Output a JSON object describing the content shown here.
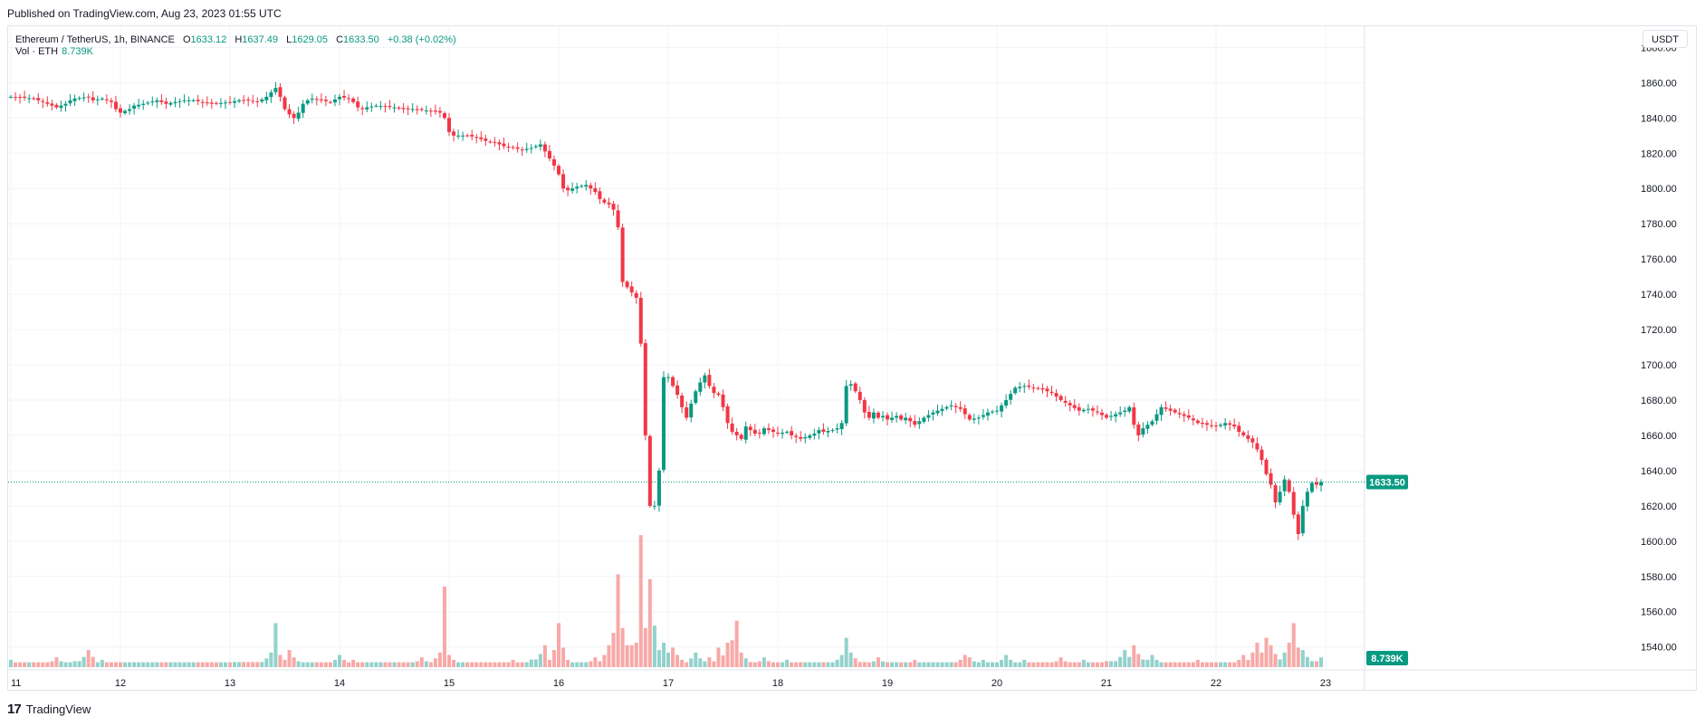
{
  "header": {
    "published": "Published on TradingView.com, Aug 23, 2023 01:55 UTC"
  },
  "legend": {
    "symbol": "Ethereum / TetherUS, 1h, BINANCE",
    "open_label": "O",
    "open": "1633.12",
    "high_label": "H",
    "high": "1637.49",
    "low_label": "L",
    "low": "1629.05",
    "close_label": "C",
    "close": "1633.50",
    "change": "+0.38 (+0.02%)",
    "volume_label": "Vol · ETH",
    "volume": "8.739K"
  },
  "currency": "USDT",
  "footer": {
    "brand": "TradingView",
    "logo": "17"
  },
  "colors": {
    "up": "#089981",
    "down": "#f23645",
    "up_vol": "#92d2cc",
    "down_vol": "#f7a9a7",
    "grid": "#f0f3fa"
  },
  "chart_data": {
    "type": "candlestick",
    "symbol": "ETHUSDT",
    "interval": "1h",
    "x_tick_labels": [
      "11",
      "12",
      "13",
      "14",
      "15",
      "16",
      "17",
      "18",
      "19",
      "20",
      "21",
      "22",
      "23"
    ],
    "y_tick_labels": [
      "1540.00",
      "1560.00",
      "1580.00",
      "1600.00",
      "1620.00",
      "1640.00",
      "1660.00",
      "1680.00",
      "1700.00",
      "1720.00",
      "1740.00",
      "1760.00",
      "1780.00",
      "1800.00",
      "1820.00",
      "1840.00",
      "1860.00",
      "1880.00"
    ],
    "ylim": [
      1527,
      1892
    ],
    "last_price_label": "1633.50",
    "volume_badge": "8.739K",
    "grid": true,
    "price_path": [
      [
        0,
        1852
      ],
      [
        5,
        1851
      ],
      [
        8,
        1848
      ],
      [
        10,
        1846
      ],
      [
        12,
        1848
      ],
      [
        13,
        1850
      ],
      [
        14,
        1851
      ],
      [
        17,
        1852
      ],
      [
        18,
        1850
      ],
      [
        20,
        1851
      ],
      [
        22,
        1849
      ],
      [
        23,
        1845
      ],
      [
        24,
        1843
      ],
      [
        26,
        1845
      ],
      [
        27,
        1847
      ],
      [
        29,
        1848
      ],
      [
        32,
        1850
      ],
      [
        34,
        1848
      ],
      [
        36,
        1849
      ],
      [
        38,
        1850
      ],
      [
        40,
        1850
      ],
      [
        42,
        1849
      ],
      [
        44,
        1848
      ],
      [
        48,
        1849
      ],
      [
        50,
        1850
      ],
      [
        52,
        1850
      ],
      [
        54,
        1849
      ],
      [
        56,
        1852
      ],
      [
        58,
        1857
      ],
      [
        59,
        1852
      ],
      [
        60,
        1845
      ],
      [
        61,
        1842
      ],
      [
        62,
        1840
      ],
      [
        63,
        1843
      ],
      [
        64,
        1848
      ],
      [
        65,
        1850
      ],
      [
        66,
        1851
      ],
      [
        68,
        1850
      ],
      [
        70,
        1849
      ],
      [
        72,
        1852
      ],
      [
        74,
        1851
      ],
      [
        75,
        1849
      ],
      [
        76,
        1846
      ],
      [
        77,
        1845
      ],
      [
        78,
        1846
      ],
      [
        80,
        1847
      ],
      [
        84,
        1846
      ],
      [
        86,
        1845
      ],
      [
        88,
        1845
      ],
      [
        92,
        1844
      ],
      [
        94,
        1843
      ],
      [
        95,
        1840
      ],
      [
        96,
        1832
      ],
      [
        97,
        1830
      ],
      [
        98,
        1830
      ],
      [
        100,
        1830
      ],
      [
        102,
        1829
      ],
      [
        104,
        1827
      ],
      [
        106,
        1826
      ],
      [
        108,
        1824
      ],
      [
        110,
        1823
      ],
      [
        112,
        1822
      ],
      [
        114,
        1823
      ],
      [
        116,
        1825
      ],
      [
        117,
        1821
      ],
      [
        118,
        1817
      ],
      [
        119,
        1813
      ],
      [
        120,
        1808
      ],
      [
        121,
        1800
      ],
      [
        122,
        1799
      ],
      [
        124,
        1801
      ],
      [
        126,
        1802
      ],
      [
        128,
        1798
      ],
      [
        129,
        1794
      ],
      [
        130,
        1792
      ],
      [
        131,
        1791
      ],
      [
        132,
        1788
      ],
      [
        133,
        1778
      ],
      [
        134,
        1747
      ],
      [
        135,
        1744
      ],
      [
        136,
        1741
      ],
      [
        137,
        1738
      ],
      [
        138,
        1712
      ],
      [
        139,
        1660
      ],
      [
        140,
        1620
      ],
      [
        141,
        1620
      ],
      [
        142,
        1640
      ],
      [
        143,
        1693
      ],
      [
        144,
        1693
      ],
      [
        145,
        1688
      ],
      [
        146,
        1683
      ],
      [
        147,
        1676
      ],
      [
        148,
        1670
      ],
      [
        149,
        1678
      ],
      [
        150,
        1685
      ],
      [
        151,
        1690
      ],
      [
        152,
        1694
      ],
      [
        153,
        1688
      ],
      [
        154,
        1684
      ],
      [
        155,
        1683
      ],
      [
        156,
        1676
      ],
      [
        157,
        1667
      ],
      [
        158,
        1662
      ],
      [
        159,
        1660
      ],
      [
        160,
        1658
      ],
      [
        161,
        1665
      ],
      [
        162,
        1663
      ],
      [
        163,
        1661
      ],
      [
        164,
        1661
      ],
      [
        165,
        1664
      ],
      [
        166,
        1663
      ],
      [
        168,
        1661
      ],
      [
        170,
        1662
      ],
      [
        171,
        1660
      ],
      [
        172,
        1659
      ],
      [
        173,
        1658
      ],
      [
        175,
        1660
      ],
      [
        176,
        1661
      ],
      [
        177,
        1663
      ],
      [
        178,
        1662
      ],
      [
        180,
        1663
      ],
      [
        181,
        1664
      ],
      [
        182,
        1667
      ],
      [
        183,
        1688
      ],
      [
        184,
        1689
      ],
      [
        185,
        1685
      ],
      [
        186,
        1680
      ],
      [
        187,
        1673
      ],
      [
        188,
        1670
      ],
      [
        189,
        1673
      ],
      [
        190,
        1670
      ],
      [
        191,
        1671
      ],
      [
        192,
        1669
      ],
      [
        194,
        1671
      ],
      [
        195,
        1669
      ],
      [
        196,
        1670
      ],
      [
        198,
        1666
      ],
      [
        199,
        1668
      ],
      [
        200,
        1670
      ],
      [
        202,
        1673
      ],
      [
        204,
        1675
      ],
      [
        206,
        1677
      ],
      [
        208,
        1675
      ],
      [
        210,
        1669
      ],
      [
        212,
        1670
      ],
      [
        214,
        1673
      ],
      [
        216,
        1674
      ],
      [
        218,
        1680
      ],
      [
        220,
        1687
      ],
      [
        222,
        1688
      ],
      [
        224,
        1687
      ],
      [
        226,
        1686
      ],
      [
        228,
        1684
      ],
      [
        230,
        1680
      ],
      [
        232,
        1677
      ],
      [
        234,
        1674
      ],
      [
        236,
        1675
      ],
      [
        238,
        1673
      ],
      [
        240,
        1670
      ],
      [
        242,
        1672
      ],
      [
        244,
        1674
      ],
      [
        245,
        1676
      ],
      [
        246,
        1666
      ],
      [
        247,
        1660
      ],
      [
        248,
        1664
      ],
      [
        250,
        1668
      ],
      [
        252,
        1676
      ],
      [
        254,
        1674
      ],
      [
        256,
        1672
      ],
      [
        258,
        1670
      ],
      [
        260,
        1667
      ],
      [
        262,
        1666
      ],
      [
        264,
        1665
      ],
      [
        266,
        1667
      ],
      [
        268,
        1665
      ],
      [
        269,
        1662
      ],
      [
        270,
        1660
      ],
      [
        272,
        1656
      ],
      [
        273,
        1652
      ],
      [
        274,
        1646
      ],
      [
        275,
        1638
      ],
      [
        276,
        1632
      ],
      [
        277,
        1622
      ],
      [
        278,
        1628
      ],
      [
        279,
        1635
      ],
      [
        280,
        1628
      ],
      [
        281,
        1615
      ],
      [
        282,
        1604
      ],
      [
        283,
        1620
      ],
      [
        284,
        1628
      ],
      [
        285,
        1633
      ],
      [
        286,
        1632
      ],
      [
        287,
        1633.5
      ]
    ],
    "volume_scale_note": "",
    "volume_levels": [
      [
        0,
        3
      ],
      [
        10,
        4
      ],
      [
        17,
        7
      ],
      [
        20,
        3
      ],
      [
        40,
        2
      ],
      [
        57,
        6
      ],
      [
        58,
        18
      ],
      [
        59,
        5
      ],
      [
        60,
        3
      ],
      [
        61,
        7
      ],
      [
        62,
        4
      ],
      [
        72,
        5
      ],
      [
        75,
        3
      ],
      [
        90,
        4
      ],
      [
        94,
        6
      ],
      [
        95,
        33
      ],
      [
        96,
        5
      ],
      [
        100,
        2
      ],
      [
        110,
        3
      ],
      [
        117,
        9
      ],
      [
        118,
        3
      ],
      [
        119,
        7
      ],
      [
        120,
        18
      ],
      [
        121,
        8
      ],
      [
        122,
        3
      ],
      [
        128,
        4
      ],
      [
        130,
        5
      ],
      [
        131,
        9
      ],
      [
        132,
        14
      ],
      [
        133,
        38
      ],
      [
        134,
        16
      ],
      [
        135,
        9
      ],
      [
        136,
        9
      ],
      [
        137,
        10
      ],
      [
        138,
        54
      ],
      [
        139,
        16
      ],
      [
        140,
        36
      ],
      [
        141,
        17
      ],
      [
        142,
        7
      ],
      [
        143,
        10
      ],
      [
        144,
        6
      ],
      [
        145,
        8
      ],
      [
        146,
        5
      ],
      [
        150,
        6
      ],
      [
        153,
        4
      ],
      [
        155,
        8
      ],
      [
        157,
        10
      ],
      [
        158,
        11
      ],
      [
        159,
        19
      ],
      [
        160,
        6
      ],
      [
        165,
        4
      ],
      [
        170,
        3
      ],
      [
        182,
        5
      ],
      [
        183,
        12
      ],
      [
        184,
        6
      ],
      [
        190,
        4
      ],
      [
        198,
        3
      ],
      [
        209,
        5
      ],
      [
        210,
        4
      ],
      [
        213,
        3
      ],
      [
        218,
        5
      ],
      [
        222,
        3
      ],
      [
        230,
        4
      ],
      [
        235,
        3
      ],
      [
        244,
        7
      ],
      [
        246,
        9
      ],
      [
        250,
        5
      ],
      [
        260,
        3
      ],
      [
        270,
        5
      ],
      [
        273,
        10
      ],
      [
        275,
        12
      ],
      [
        276,
        9
      ],
      [
        280,
        10
      ],
      [
        281,
        18
      ],
      [
        282,
        8
      ],
      [
        283,
        7
      ],
      [
        287,
        4
      ]
    ]
  }
}
